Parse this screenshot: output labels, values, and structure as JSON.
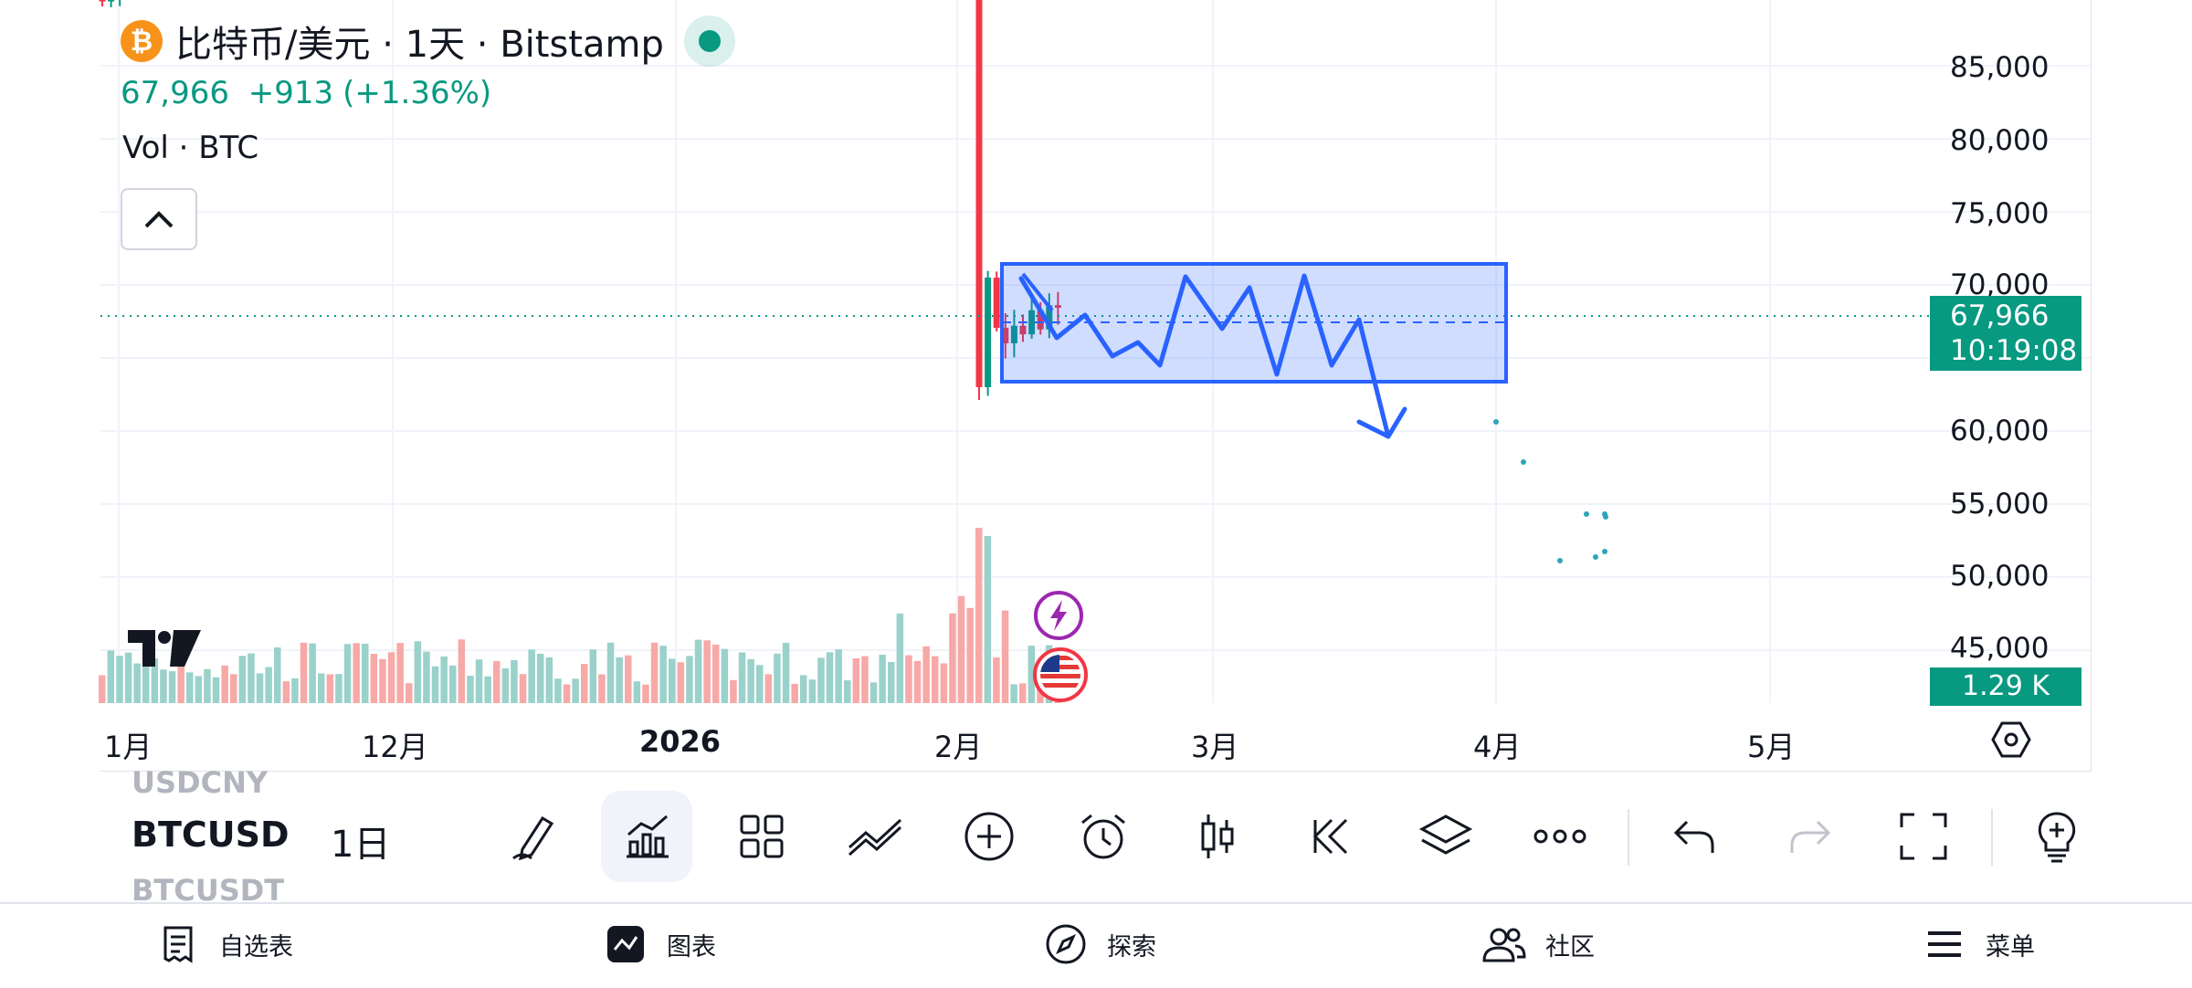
{
  "header": {
    "symbol_title": "比特币/美元 · 1天 · Bitstamp",
    "coin_glyph": "₿",
    "last_price": "67,966",
    "change": "+913",
    "change_pct": "(+1.36%)",
    "volume_label": "Vol · BTC"
  },
  "price_axis": {
    "labels": [
      "85,000",
      "80,000",
      "75,000",
      "70,000",
      "60,000",
      "55,000",
      "50,000",
      "45,000"
    ],
    "last_price": "67,966",
    "countdown": "10:19:08",
    "volume_value": "1.29 K"
  },
  "time_axis": {
    "labels": [
      "1月",
      "12月",
      "2026",
      "2月",
      "3月",
      "4月",
      "5月"
    ]
  },
  "chart_data": {
    "type": "candlestick",
    "symbol": "BTCUSD",
    "y_range": [
      43000,
      89000
    ],
    "last_price": 67966,
    "range_box": {
      "top": 71500,
      "bottom": 63500,
      "mid": 67500
    },
    "projection_path": [
      [
        0,
        70000
      ],
      [
        0.08,
        66800
      ],
      [
        0.22,
        68400
      ],
      [
        0.35,
        65800
      ],
      [
        0.45,
        66400
      ],
      [
        0.5,
        65200
      ],
      [
        0.63,
        70500
      ],
      [
        0.72,
        67500
      ],
      [
        0.83,
        69500
      ],
      [
        0.9,
        64500
      ],
      [
        1.0,
        70600
      ],
      [
        1.05,
        65000
      ],
      [
        1.1,
        67800
      ],
      [
        1.2,
        61500
      ]
    ],
    "colors": {
      "up": "#089981",
      "down": "#f23645",
      "vol_up": "#9ad1cb",
      "vol_down": "#f7a9a7",
      "drawing": "#2962ff"
    }
  },
  "toolbar": {
    "symbol_prev": "USDCNY",
    "symbol_current": "BTCUSD",
    "symbol_next": "BTCUSDT",
    "interval": "1日",
    "tools": [
      "pen-icon",
      "indicators-icon",
      "layout-grid-icon",
      "drawing-tools-icon",
      "add-icon",
      "alarm-icon",
      "candle-style-icon",
      "replay-icon",
      "layers-icon",
      "more-icon",
      "undo-icon",
      "redo-icon",
      "fullscreen-icon",
      "idea-icon"
    ]
  },
  "bottom_nav": {
    "watchlist": "自选表",
    "chart": "图表",
    "explore": "探索",
    "community": "社区",
    "menu": "菜单"
  }
}
